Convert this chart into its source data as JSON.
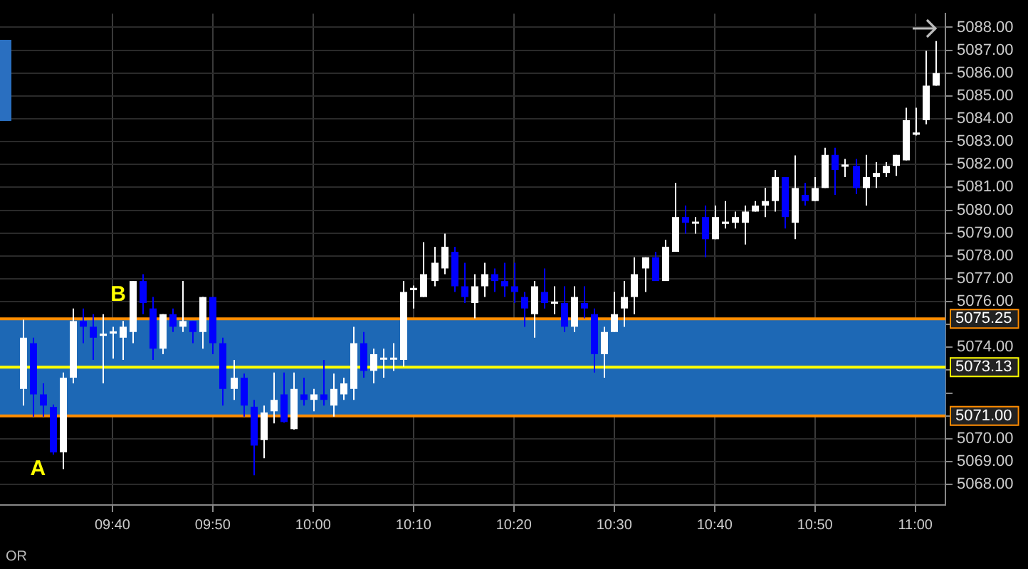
{
  "chart_data": {
    "type": "candlestick",
    "x": [
      9.5167,
      9.5333,
      9.55,
      9.5667,
      9.5833,
      9.6,
      9.6167,
      9.6333,
      9.65,
      9.6667,
      9.6833,
      9.7,
      9.7167,
      9.7333,
      9.75,
      9.7667,
      9.7833,
      9.8,
      9.8167,
      9.8333,
      9.85,
      9.8667,
      9.8833,
      9.9,
      9.9167,
      9.9333,
      9.95,
      9.9667,
      9.9833,
      10,
      10.0167,
      10.0333,
      10.05,
      10.0667,
      10.0833,
      10.1,
      10.1167,
      10.1333,
      10.15,
      10.1667,
      10.1833,
      10.2,
      10.2167,
      10.2333,
      10.25,
      10.2667,
      10.2833,
      10.3,
      10.3167,
      10.3333,
      10.35,
      10.3667,
      10.3833,
      10.4,
      10.4167,
      10.4333,
      10.45,
      10.4667,
      10.4833,
      10.5,
      10.5167,
      10.5333,
      10.55,
      10.5667,
      10.5833,
      10.6,
      10.6167,
      10.6333,
      10.65,
      10.6667,
      10.6833,
      10.7,
      10.7167,
      10.7333,
      10.75,
      10.7667,
      10.7833,
      10.8,
      10.8167,
      10.8333,
      10.85,
      10.8667,
      10.8833,
      10.9,
      10.9167,
      10.9333,
      10.95,
      10.9667,
      10.9833,
      11,
      11.0167,
      11.0333
    ],
    "ohlc": [
      [
        5072.18,
        5075.21,
        5071.45,
        5074.42
      ],
      [
        5074.18,
        5074.42,
        5070.97,
        5071.94
      ],
      [
        5071.94,
        5072.42,
        5070.97,
        5071.45
      ],
      [
        5071.39,
        5071.5,
        5069.3,
        5069.4
      ],
      [
        5069.4,
        5072.9,
        5068.67,
        5072.67
      ],
      [
        5072.67,
        5075.7,
        5072.42,
        5075.15
      ],
      [
        5075.15,
        5075.7,
        5074.18,
        5074.9
      ],
      [
        5074.9,
        5075.45,
        5073.45,
        5074.42
      ],
      [
        5074.5,
        5075.45,
        5072.42,
        5074.6
      ],
      [
        5074.6,
        5074.9,
        5073.5,
        5074.7
      ],
      [
        5074.42,
        5075.15,
        5073.45,
        5074.9
      ],
      [
        5074.67,
        5076.9,
        5074.18,
        5076.9
      ],
      [
        5076.9,
        5077.2,
        5075.45,
        5075.94
      ],
      [
        5075.7,
        5076.2,
        5073.45,
        5073.94
      ],
      [
        5073.94,
        5075.45,
        5073.7,
        5075.45
      ],
      [
        5075.45,
        5075.7,
        5074.67,
        5074.9
      ],
      [
        5074.9,
        5076.9,
        5074.67,
        5075.15
      ],
      [
        5075.15,
        5075.15,
        5074.18,
        5074.67
      ],
      [
        5074.67,
        5076.2,
        5073.94,
        5076.2
      ],
      [
        5076.2,
        5076.2,
        5073.7,
        5074.18
      ],
      [
        5074.18,
        5074.42,
        5071.45,
        5072.18
      ],
      [
        5072.18,
        5073.45,
        5071.7,
        5072.67
      ],
      [
        5072.67,
        5072.85,
        5070.97,
        5071.45
      ],
      [
        5071.4,
        5071.7,
        5068.4,
        5069.7
      ],
      [
        5069.94,
        5071.45,
        5069.15,
        5071.15
      ],
      [
        5071.2,
        5072.9,
        5070.67,
        5071.7
      ],
      [
        5071.94,
        5072.9,
        5070.7,
        5070.73
      ],
      [
        5070.42,
        5072.9,
        5070.4,
        5072.18
      ],
      [
        5071.94,
        5072.67,
        5071.45,
        5071.7
      ],
      [
        5071.7,
        5072.18,
        5071.2,
        5071.94
      ],
      [
        5071.94,
        5073.45,
        5071.45,
        5071.7
      ],
      [
        5071.45,
        5072.85,
        5070.97,
        5072.18
      ],
      [
        5071.94,
        5072.67,
        5071.7,
        5072.42
      ],
      [
        5072.18,
        5074.9,
        5071.7,
        5074.18
      ],
      [
        5074.18,
        5074.67,
        5072.67,
        5072.97
      ],
      [
        5072.97,
        5073.94,
        5072.42,
        5073.7
      ],
      [
        5073.5,
        5073.94,
        5072.67,
        5073.55
      ],
      [
        5073.5,
        5074.18,
        5072.97,
        5073.55
      ],
      [
        5073.45,
        5076.9,
        5073.15,
        5076.42
      ],
      [
        5076.5,
        5076.7,
        5075.7,
        5076.6
      ],
      [
        5076.2,
        5078.6,
        5076.2,
        5077.2
      ],
      [
        5076.9,
        5078.4,
        5076.67,
        5077.7
      ],
      [
        5077.45,
        5078.97,
        5077.2,
        5078.4
      ],
      [
        5078.18,
        5078.4,
        5076.42,
        5076.67
      ],
      [
        5076.67,
        5077.7,
        5075.94,
        5076.2
      ],
      [
        5075.94,
        5077.2,
        5075.27,
        5076.67
      ],
      [
        5076.67,
        5077.7,
        5076.2,
        5077.2
      ],
      [
        5077.2,
        5077.45,
        5076.42,
        5076.9
      ],
      [
        5076.9,
        5077.7,
        5076.2,
        5076.67
      ],
      [
        5076.67,
        5077.7,
        5075.94,
        5076.42
      ],
      [
        5076.2,
        5076.42,
        5074.9,
        5075.7
      ],
      [
        5075.45,
        5076.9,
        5074.42,
        5076.67
      ],
      [
        5076.42,
        5077.45,
        5075.7,
        5075.94
      ],
      [
        5075.95,
        5076.67,
        5075.45,
        5076
      ],
      [
        5075.94,
        5076.67,
        5074.67,
        5074.9
      ],
      [
        5074.9,
        5076.67,
        5074.67,
        5076.2
      ],
      [
        5075.94,
        5076.67,
        5075.27,
        5075.7
      ],
      [
        5075.45,
        5075.7,
        5072.9,
        5073.7
      ],
      [
        5073.7,
        5074.9,
        5072.67,
        5074.67
      ],
      [
        5074.67,
        5076.42,
        5074.67,
        5075.45
      ],
      [
        5075.7,
        5076.9,
        5074.9,
        5076.2
      ],
      [
        5076.2,
        5077.94,
        5075.45,
        5077.2
      ],
      [
        5077.45,
        5077.94,
        5076.42,
        5077.94
      ],
      [
        5077.94,
        5078.18,
        5076.9,
        5076.9
      ],
      [
        5076.9,
        5078.7,
        5076.9,
        5078.4
      ],
      [
        5078.18,
        5081.2,
        5078.18,
        5079.7
      ],
      [
        5079.7,
        5080.2,
        5078.97,
        5079.45
      ],
      [
        5079.45,
        5079.7,
        5078.97,
        5079.5
      ],
      [
        5079.7,
        5080.2,
        5077.94,
        5078.73
      ],
      [
        5078.73,
        5080.2,
        5078.73,
        5079.7
      ],
      [
        5079.4,
        5080.4,
        5079.2,
        5079.5
      ],
      [
        5079.45,
        5079.94,
        5079.2,
        5079.7
      ],
      [
        5079.45,
        5080.2,
        5078.5,
        5079.94
      ],
      [
        5079.94,
        5080.4,
        5079.94,
        5080.2
      ],
      [
        5080.2,
        5080.97,
        5079.7,
        5080.4
      ],
      [
        5080.4,
        5081.76,
        5079.94,
        5081.45
      ],
      [
        5081.45,
        5081.45,
        5079.2,
        5079.7
      ],
      [
        5079.45,
        5082.4,
        5078.73,
        5080.97
      ],
      [
        5080.67,
        5081.2,
        5080.2,
        5080.4
      ],
      [
        5080.4,
        5081.45,
        5080.4,
        5080.97
      ],
      [
        5080.97,
        5082.73,
        5080.97,
        5082.42
      ],
      [
        5082.42,
        5082.73,
        5080.67,
        5081.76
      ],
      [
        5081.9,
        5082.24,
        5081.45,
        5082
      ],
      [
        5081.94,
        5082.24,
        5080.7,
        5080.97
      ],
      [
        5080.97,
        5082.42,
        5080.2,
        5081.45
      ],
      [
        5081.45,
        5082.1,
        5080.97,
        5081.63
      ],
      [
        5081.63,
        5082.1,
        5081.45,
        5081.94
      ],
      [
        5081.94,
        5082.42,
        5081.5,
        5082.42
      ],
      [
        5082.18,
        5084.48,
        5082.18,
        5083.94
      ],
      [
        5083.3,
        5084.48,
        5083.27,
        5083.4
      ],
      [
        5083.94,
        5086.97,
        5083.76,
        5085.45
      ],
      [
        5085.45,
        5087.4,
        5085.45,
        5086
      ]
    ],
    "colors": [
      "#ffffff",
      "#0000ff",
      "#0000ff",
      "#0000ff",
      "#ffffff",
      "#ffffff",
      "#0000ff",
      "#0000ff",
      "#ffffff",
      "#ffffff",
      "#ffffff",
      "#ffffff",
      "#0000ff",
      "#0000ff",
      "#ffffff",
      "#0000ff",
      "#ffffff",
      "#0000ff",
      "#ffffff",
      "#0000ff",
      "#0000ff",
      "#ffffff",
      "#0000ff",
      "#0000ff",
      "#ffffff",
      "#ffffff",
      "#0000ff",
      "#ffffff",
      "#0000ff",
      "#ffffff",
      "#0000ff",
      "#ffffff",
      "#ffffff",
      "#ffffff",
      "#0000ff",
      "#ffffff",
      "#ffffff",
      "#ffffff",
      "#ffffff",
      "#ffffff",
      "#ffffff",
      "#ffffff",
      "#ffffff",
      "#0000ff",
      "#0000ff",
      "#ffffff",
      "#ffffff",
      "#0000ff",
      "#0000ff",
      "#0000ff",
      "#0000ff",
      "#ffffff",
      "#0000ff",
      "#ffffff",
      "#0000ff",
      "#ffffff",
      "#0000ff",
      "#0000ff",
      "#ffffff",
      "#ffffff",
      "#ffffff",
      "#ffffff",
      "#ffffff",
      "#0000ff",
      "#ffffff",
      "#ffffff",
      "#0000ff",
      "#ffffff",
      "#0000ff",
      "#ffffff",
      "#ffffff",
      "#ffffff",
      "#ffffff",
      "#ffffff",
      "#ffffff",
      "#ffffff",
      "#0000ff",
      "#ffffff",
      "#0000ff",
      "#ffffff",
      "#ffffff",
      "#0000ff",
      "#ffffff",
      "#0000ff",
      "#ffffff",
      "#ffffff",
      "#ffffff",
      "#ffffff",
      "#ffffff",
      "#ffffff",
      "#ffffff",
      "#ffffff"
    ],
    "xlim": [
      9.48,
      11.05
    ],
    "xticks": [
      {
        "value": 9.6667,
        "label": "09:40"
      },
      {
        "value": 9.8333,
        "label": "09:50"
      },
      {
        "value": 10,
        "label": "10:00"
      },
      {
        "value": 10.1667,
        "label": "10:10"
      },
      {
        "value": 10.3333,
        "label": "10:20"
      },
      {
        "value": 10.5,
        "label": "10:30"
      },
      {
        "value": 10.6667,
        "label": "10:40"
      },
      {
        "value": 10.8333,
        "label": "10:50"
      },
      {
        "value": 11,
        "label": "11:00"
      }
    ],
    "ylim": [
      5067.1,
      5088.6
    ],
    "yticks": [
      {
        "value": 5068,
        "label": "5068.00"
      },
      {
        "value": 5069,
        "label": "5069.00"
      },
      {
        "value": 5070,
        "label": "5070.00"
      },
      {
        "value": 5071,
        "label": null
      },
      {
        "value": 5072,
        "label": null
      },
      {
        "value": 5073,
        "label": null
      },
      {
        "value": 5074,
        "label": "5074.00"
      },
      {
        "value": 5075,
        "label": null
      },
      {
        "value": 5076,
        "label": "5076.00"
      },
      {
        "value": 5077,
        "label": "5077.00"
      },
      {
        "value": 5078,
        "label": "5078.00"
      },
      {
        "value": 5079,
        "label": "5079.00"
      },
      {
        "value": 5080,
        "label": "5080.00"
      },
      {
        "value": 5081,
        "label": "5081.00"
      },
      {
        "value": 5082,
        "label": "5082.00"
      },
      {
        "value": 5083,
        "label": "5083.00"
      },
      {
        "value": 5084,
        "label": "5084.00"
      },
      {
        "value": 5085,
        "label": "5085.00"
      },
      {
        "value": 5086,
        "label": "5086.00"
      },
      {
        "value": 5087,
        "label": "5087.00"
      },
      {
        "value": 5088,
        "label": "5088.00"
      }
    ],
    "bands": [
      {
        "axis": "y",
        "from": 5071,
        "to": 5075.25,
        "color": "#1d68b5"
      }
    ],
    "ref_lines": [
      {
        "axis": "y",
        "value": 5075.25,
        "label": "5075.25",
        "color": "#ff8c00"
      },
      {
        "axis": "y",
        "value": 5073.13,
        "label": "5073.13",
        "color": "#ffff00"
      },
      {
        "axis": "y",
        "value": 5071,
        "label": "5071.00",
        "color": "#ff8c00"
      }
    ],
    "annotations": [
      {
        "text": "A",
        "x": 9.5667,
        "y": 5069.3
      },
      {
        "text": "B",
        "x": 9.7,
        "y": 5076.9
      },
      "OR"
    ],
    "grid": true,
    "legend": false
  }
}
